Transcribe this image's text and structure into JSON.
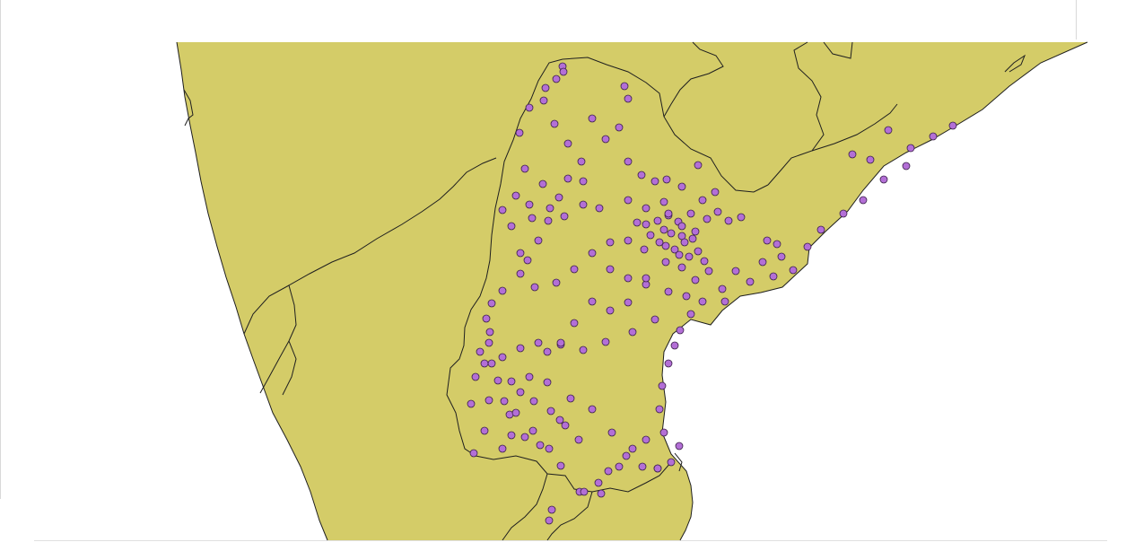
{
  "map": {
    "land_color": "#d4cc68",
    "border_color": "#1f1f1f",
    "point_fill": "#b36fd6",
    "point_stroke": "#3a1f48",
    "background": "#ffffff"
  },
  "chart_data": {
    "type": "scatter",
    "title": "",
    "xlabel": "",
    "ylabel": "",
    "legend": "none",
    "grid": false,
    "series": [
      {
        "points": [
          [
            627,
            74
          ],
          [
            628,
            80
          ],
          [
            620,
            88
          ],
          [
            608,
            98
          ],
          [
            590,
            120
          ],
          [
            579,
            148
          ],
          [
            585,
            188
          ],
          [
            575,
            218
          ],
          [
            560,
            234
          ],
          [
            570,
            252
          ],
          [
            593,
            243
          ],
          [
            613,
            232
          ],
          [
            629,
            241
          ],
          [
            650,
            228
          ],
          [
            668,
            232
          ],
          [
            700,
            223
          ],
          [
            720,
            250
          ],
          [
            740,
            256
          ],
          [
            760,
            263
          ],
          [
            778,
            280
          ],
          [
            790,
            302
          ],
          [
            775,
            312
          ],
          [
            805,
            322
          ],
          [
            820,
            302
          ],
          [
            850,
            292
          ],
          [
            871,
            286
          ],
          [
            900,
            275
          ],
          [
            915,
            256
          ],
          [
            940,
            238
          ],
          [
            962,
            223
          ],
          [
            985,
            200
          ],
          [
            1015,
            165
          ],
          [
            1040,
            152
          ],
          [
            1062,
            140
          ],
          [
            1010,
            185
          ],
          [
            950,
            172
          ],
          [
            970,
            178
          ],
          [
            990,
            145
          ],
          [
            700,
            110
          ],
          [
            696,
            96
          ],
          [
            690,
            142
          ],
          [
            675,
            155
          ],
          [
            660,
            132
          ],
          [
            648,
            180
          ],
          [
            633,
            199
          ],
          [
            623,
            220
          ],
          [
            611,
            246
          ],
          [
            600,
            268
          ],
          [
            588,
            290
          ],
          [
            580,
            305
          ],
          [
            560,
            324
          ],
          [
            548,
            338
          ],
          [
            542,
            355
          ],
          [
            545,
            382
          ],
          [
            548,
            405
          ],
          [
            555,
            424
          ],
          [
            562,
            447
          ],
          [
            568,
            462
          ],
          [
            570,
            485
          ],
          [
            560,
            500
          ],
          [
            528,
            505
          ],
          [
            545,
            446
          ],
          [
            580,
            437
          ],
          [
            610,
            426
          ],
          [
            636,
            444
          ],
          [
            660,
            456
          ],
          [
            682,
            482
          ],
          [
            698,
            508
          ],
          [
            716,
            520
          ],
          [
            733,
            522
          ],
          [
            748,
            515
          ],
          [
            757,
            497
          ],
          [
            740,
            482
          ],
          [
            735,
            456
          ],
          [
            738,
            430
          ],
          [
            745,
            405
          ],
          [
            752,
            385
          ],
          [
            758,
            368
          ],
          [
            770,
            350
          ],
          [
            783,
            336
          ],
          [
            730,
            356
          ],
          [
            705,
            370
          ],
          [
            675,
            381
          ],
          [
            650,
            390
          ],
          [
            625,
            384
          ],
          [
            600,
            382
          ],
          [
            580,
            388
          ],
          [
            560,
            398
          ],
          [
            540,
            405
          ],
          [
            720,
            490
          ],
          [
            705,
            500
          ],
          [
            690,
            520
          ],
          [
            670,
            550
          ],
          [
            646,
            548
          ],
          [
            625,
            519
          ],
          [
            612,
            500
          ],
          [
            594,
            480
          ],
          [
            575,
            460
          ],
          [
            595,
            447
          ],
          [
            614,
            458
          ],
          [
            630,
            474
          ],
          [
            645,
            490
          ],
          [
            624,
            468
          ],
          [
            680,
            300
          ],
          [
            700,
            310
          ],
          [
            720,
            317
          ],
          [
            745,
            325
          ],
          [
            765,
            330
          ],
          [
            680,
            270
          ],
          [
            660,
            282
          ],
          [
            640,
            300
          ],
          [
            620,
            315
          ],
          [
            740,
            225
          ],
          [
            745,
            240
          ],
          [
            756,
            247
          ],
          [
            770,
            238
          ],
          [
            783,
            223
          ],
          [
            797,
            214
          ],
          [
            812,
            246
          ],
          [
            826,
            242
          ],
          [
            735,
            270
          ],
          [
            752,
            278
          ],
          [
            768,
            286
          ],
          [
            785,
            291
          ],
          [
            660,
            336
          ],
          [
            680,
            346
          ],
          [
            700,
            337
          ],
          [
            640,
            360
          ],
          [
            625,
            382
          ],
          [
            610,
            392
          ],
          [
            590,
            420
          ],
          [
            570,
            425
          ],
          [
            546,
            370
          ],
          [
            535,
            392
          ],
          [
            530,
            420
          ],
          [
            525,
            450
          ],
          [
            540,
            480
          ],
          [
            606,
            112
          ],
          [
            618,
            138
          ],
          [
            633,
            160
          ],
          [
            650,
            202
          ],
          [
            605,
            205
          ],
          [
            590,
            228
          ],
          [
            580,
            282
          ],
          [
            596,
            320
          ],
          [
            730,
            202
          ],
          [
            743,
            200
          ],
          [
            760,
            208
          ],
          [
            778,
            184
          ],
          [
            700,
            180
          ],
          [
            715,
            195
          ],
          [
            742,
            292
          ],
          [
            760,
            298
          ],
          [
            808,
            336
          ],
          [
            836,
            314
          ],
          [
            862,
            308
          ],
          [
            884,
            301
          ],
          [
            720,
            232
          ],
          [
            733,
            246
          ],
          [
            748,
            260
          ],
          [
            763,
            270
          ],
          [
            775,
            258
          ],
          [
            788,
            244
          ],
          [
            800,
            236
          ],
          [
            725,
            262
          ],
          [
            710,
            248
          ],
          [
            700,
            268
          ],
          [
            718,
            278
          ],
          [
            745,
            238
          ],
          [
            760,
            252
          ],
          [
            772,
            266
          ],
          [
            757,
            284
          ],
          [
            742,
            274
          ],
          [
            612,
            580
          ],
          [
            651,
            548
          ],
          [
            667,
            538
          ],
          [
            678,
            525
          ],
          [
            585,
            487
          ],
          [
            602,
            496
          ],
          [
            615,
            568
          ],
          [
            733,
            522
          ],
          [
            720,
            310
          ],
          [
            866,
            272
          ],
          [
            855,
            268
          ]
        ]
      }
    ]
  }
}
